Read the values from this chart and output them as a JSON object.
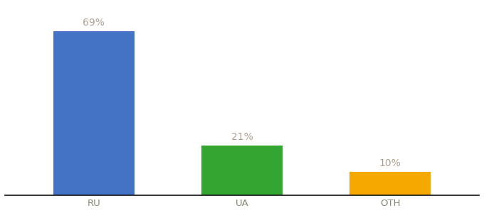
{
  "categories": [
    "RU",
    "UA",
    "OTH"
  ],
  "values": [
    69,
    21,
    10
  ],
  "bar_colors": [
    "#4472c4",
    "#33a632",
    "#f5a800"
  ],
  "label_texts": [
    "69%",
    "21%",
    "10%"
  ],
  "background_color": "#ffffff",
  "ylim": [
    0,
    80
  ],
  "bar_width": 0.55,
  "label_color": "#b0a090",
  "label_fontsize": 10,
  "tick_fontsize": 9.5,
  "tick_color": "#888877",
  "axis_line_color": "#111111"
}
